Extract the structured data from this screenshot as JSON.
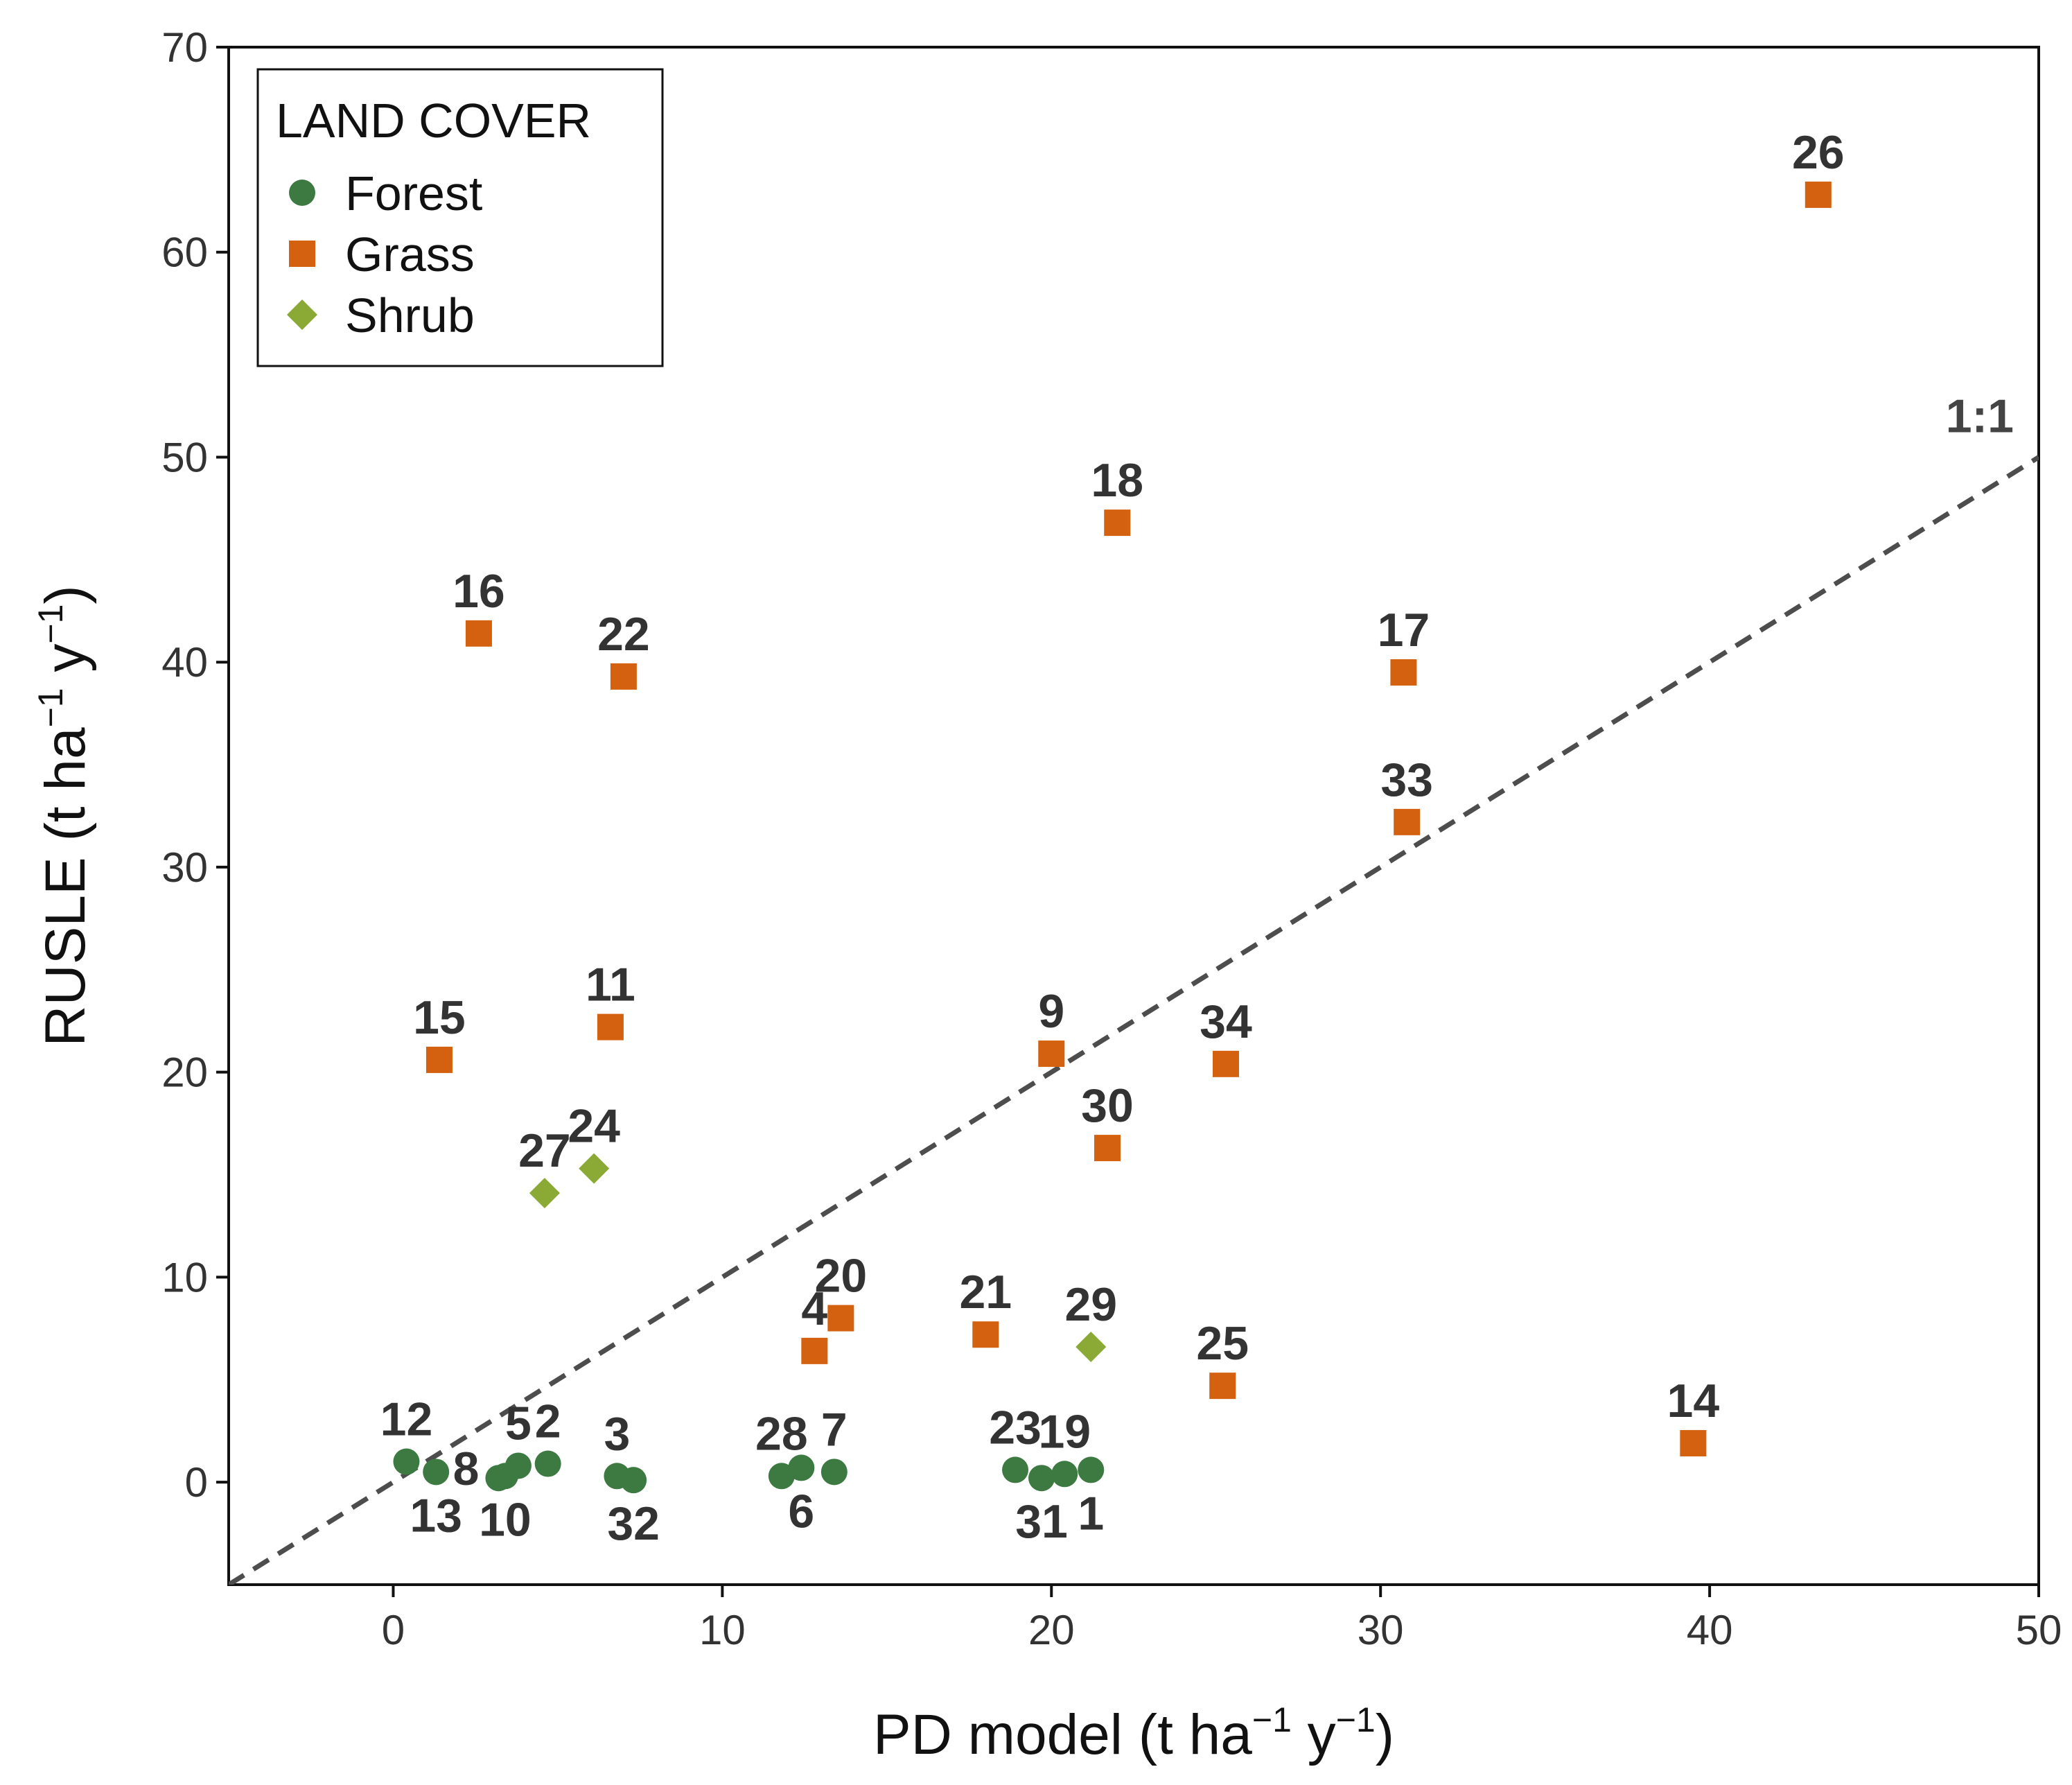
{
  "chart_data": {
    "type": "scatter",
    "title": "",
    "xlabel": "PD model (t ha",
    "xlabel_sup1": "−1",
    "xlabel_mid": " y",
    "xlabel_sup2": "−1",
    "xlabel_end": ")",
    "ylabel": "RUSLE (t ha",
    "ylabel_sup1": "−1",
    "ylabel_mid": " y",
    "ylabel_sup2": "−1",
    "ylabel_end": ")",
    "xlim": [
      -5,
      50
    ],
    "ylim": [
      -5,
      70
    ],
    "xticks": [
      0,
      10,
      20,
      30,
      40,
      50
    ],
    "yticks": [
      0,
      10,
      20,
      30,
      40,
      50,
      60,
      70
    ],
    "grid": false,
    "legend": {
      "title": "LAND COVER",
      "placement": "top-left",
      "entries": [
        {
          "name": "Forest",
          "marker": "circle",
          "color": "#3c7a42"
        },
        {
          "name": "Grass",
          "marker": "square",
          "color": "#d4610f"
        },
        {
          "name": "Shrub",
          "marker": "diamond",
          "color": "#8aaa35"
        }
      ]
    },
    "reference_line": {
      "label": "1:1",
      "slope": 1,
      "intercept": 0,
      "style": "dashed",
      "color": "#4d4d4d"
    },
    "series": [
      {
        "name": "Forest",
        "color": "#3c7a42",
        "points": [
          {
            "id": "12",
            "x": 0.4,
            "y": 1.0,
            "label_pos": "above"
          },
          {
            "id": "13",
            "x": 1.3,
            "y": 0.5,
            "label_pos": "below"
          },
          {
            "id": "8",
            "x": 3.2,
            "y": 0.2,
            "label_pos": "left"
          },
          {
            "id": "10",
            "x": 3.4,
            "y": 0.3,
            "label_pos": "below"
          },
          {
            "id": "5",
            "x": 3.8,
            "y": 0.8,
            "label_pos": "above"
          },
          {
            "id": "2",
            "x": 4.7,
            "y": 0.9,
            "label_pos": "above"
          },
          {
            "id": "3",
            "x": 6.8,
            "y": 0.3,
            "label_pos": "above"
          },
          {
            "id": "32",
            "x": 7.3,
            "y": 0.1,
            "label_pos": "below"
          },
          {
            "id": "28",
            "x": 11.8,
            "y": 0.3,
            "label_pos": "above"
          },
          {
            "id": "6",
            "x": 12.4,
            "y": 0.7,
            "label_pos": "below"
          },
          {
            "id": "7",
            "x": 13.4,
            "y": 0.5,
            "label_pos": "above"
          },
          {
            "id": "23",
            "x": 18.9,
            "y": 0.6,
            "label_pos": "above"
          },
          {
            "id": "31",
            "x": 19.7,
            "y": 0.2,
            "label_pos": "below"
          },
          {
            "id": "19",
            "x": 20.4,
            "y": 0.4,
            "label_pos": "above"
          },
          {
            "id": "1",
            "x": 21.2,
            "y": 0.6,
            "label_pos": "below"
          }
        ]
      },
      {
        "name": "Grass",
        "color": "#d4610f",
        "points": [
          {
            "id": "15",
            "x": 1.4,
            "y": 20.6,
            "label_pos": "above"
          },
          {
            "id": "16",
            "x": 2.6,
            "y": 41.4,
            "label_pos": "above"
          },
          {
            "id": "11",
            "x": 6.6,
            "y": 22.2,
            "label_pos": "above"
          },
          {
            "id": "22",
            "x": 7.0,
            "y": 39.3,
            "label_pos": "above"
          },
          {
            "id": "4",
            "x": 12.8,
            "y": 6.4,
            "label_pos": "above"
          },
          {
            "id": "20",
            "x": 13.6,
            "y": 8.0,
            "label_pos": "above"
          },
          {
            "id": "21",
            "x": 18.0,
            "y": 7.2,
            "label_pos": "above"
          },
          {
            "id": "9",
            "x": 20.0,
            "y": 20.9,
            "label_pos": "above"
          },
          {
            "id": "30",
            "x": 21.7,
            "y": 16.3,
            "label_pos": "above"
          },
          {
            "id": "18",
            "x": 22.0,
            "y": 46.8,
            "label_pos": "above"
          },
          {
            "id": "25",
            "x": 25.2,
            "y": 4.7,
            "label_pos": "above"
          },
          {
            "id": "34",
            "x": 25.3,
            "y": 20.4,
            "label_pos": "above"
          },
          {
            "id": "17",
            "x": 30.7,
            "y": 39.5,
            "label_pos": "above"
          },
          {
            "id": "33",
            "x": 30.8,
            "y": 32.2,
            "label_pos": "above"
          },
          {
            "id": "14",
            "x": 39.5,
            "y": 1.9,
            "label_pos": "above"
          },
          {
            "id": "26",
            "x": 43.3,
            "y": 62.8,
            "label_pos": "above"
          }
        ]
      },
      {
        "name": "Shrub",
        "color": "#8aaa35",
        "points": [
          {
            "id": "27",
            "x": 4.6,
            "y": 14.1,
            "label_pos": "above"
          },
          {
            "id": "24",
            "x": 6.1,
            "y": 15.3,
            "label_pos": "above"
          },
          {
            "id": "29",
            "x": 21.2,
            "y": 6.6,
            "label_pos": "above"
          }
        ]
      }
    ]
  }
}
